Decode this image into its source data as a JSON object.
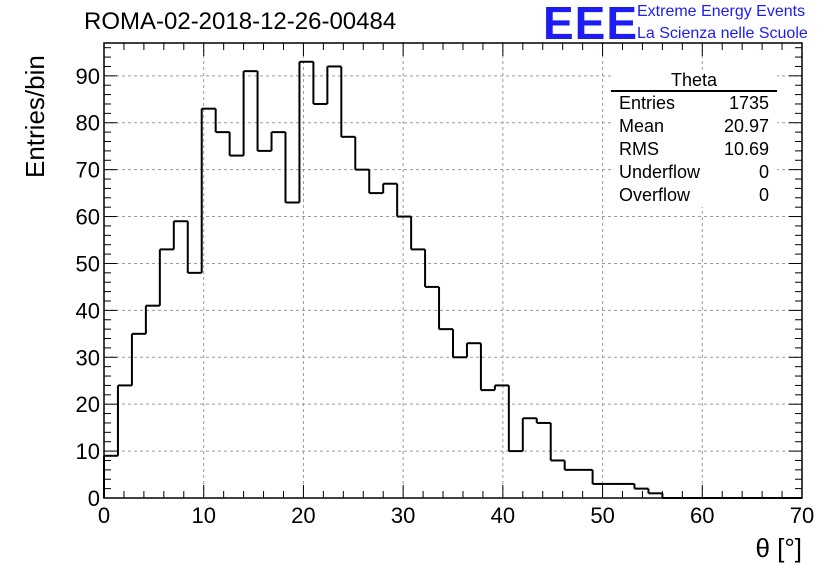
{
  "title": "ROMA-02-2018-12-26-00484",
  "logo": {
    "text": "EEE",
    "line1": "Extreme Energy Events",
    "line2": "La Scienza nelle Scuole",
    "color": "#1d1df2"
  },
  "stats": {
    "title": "Theta",
    "rows": [
      {
        "label": "Entries",
        "value": "1735"
      },
      {
        "label": "Mean",
        "value": "20.97"
      },
      {
        "label": "RMS",
        "value": "10.69"
      },
      {
        "label": "Underflow",
        "value": "0"
      },
      {
        "label": "Overflow",
        "value": "0"
      }
    ]
  },
  "chart_data": {
    "type": "histogram",
    "title": "ROMA-02-2018-12-26-00484",
    "xlabel": "θ [°]",
    "ylabel": "Entries/bin",
    "xlim": [
      0,
      70
    ],
    "ylim": [
      0,
      97
    ],
    "bin_width": 1.4,
    "grid": true,
    "xticks": [
      0,
      10,
      20,
      30,
      40,
      50,
      60,
      70
    ],
    "yticks": [
      0,
      10,
      20,
      30,
      40,
      50,
      60,
      70,
      80,
      90
    ],
    "bin_edges": [
      0,
      1.4,
      2.8,
      4.2,
      5.6,
      7.0,
      8.4,
      9.8,
      11.2,
      12.6,
      14.0,
      15.4,
      16.8,
      18.2,
      19.6,
      21.0,
      22.4,
      23.8,
      25.2,
      26.6,
      28.0,
      29.4,
      30.8,
      32.2,
      33.6,
      35.0,
      36.4,
      37.8,
      39.2,
      40.6,
      42.0,
      43.4,
      44.8,
      46.2,
      47.6,
      49.0,
      50.4,
      51.8,
      53.2,
      54.6,
      56.0,
      57.4,
      58.8,
      60.2,
      61.6,
      63.0,
      64.4,
      65.8,
      67.2,
      68.6,
      70.0
    ],
    "values": [
      9,
      24,
      35,
      41,
      53,
      59,
      48,
      83,
      78,
      73,
      91,
      74,
      78,
      63,
      93,
      84,
      92,
      77,
      70,
      65,
      67,
      60,
      53,
      45,
      36,
      30,
      33,
      23,
      24,
      10,
      17,
      16,
      8,
      6,
      6,
      3,
      3,
      3,
      2,
      1,
      0,
      0,
      0,
      0,
      0,
      0,
      0,
      0,
      0,
      0
    ]
  }
}
